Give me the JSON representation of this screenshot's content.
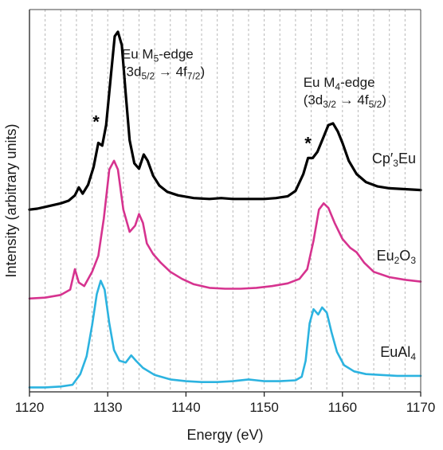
{
  "chart_data": {
    "type": "line",
    "title": "",
    "xlabel": "Energy (eV)",
    "ylabel": "Intensity (arbitrary units)",
    "xlim": [
      1120,
      1170
    ],
    "xticks": [
      1120,
      1130,
      1140,
      1150,
      1160,
      1170
    ],
    "xtick_labels": [
      "1120",
      "1130",
      "1140",
      "1150",
      "1160",
      "1170"
    ],
    "grid": "vertical dashed lines every 2 eV",
    "grid_x": [
      1122,
      1124,
      1126,
      1128,
      1130,
      1132,
      1134,
      1136,
      1138,
      1140,
      1142,
      1144,
      1146,
      1148,
      1150,
      1152,
      1154,
      1156,
      1158,
      1160,
      1162,
      1164,
      1166,
      1168
    ],
    "y_axis_ticks": "none",
    "series": [
      {
        "color": "#000000",
        "label_parts": [
          "Cp′",
          "3",
          "Eu"
        ],
        "offset": 2.0,
        "points": [
          [
            1120,
            0.0
          ],
          [
            1121,
            0.01
          ],
          [
            1122,
            0.03
          ],
          [
            1123,
            0.05
          ],
          [
            1124,
            0.07
          ],
          [
            1125,
            0.1
          ],
          [
            1125.8,
            0.16
          ],
          [
            1126.3,
            0.25
          ],
          [
            1126.8,
            0.18
          ],
          [
            1127.5,
            0.28
          ],
          [
            1128.2,
            0.48
          ],
          [
            1128.8,
            0.75
          ],
          [
            1129.3,
            0.72
          ],
          [
            1129.8,
            0.95
          ],
          [
            1130.4,
            1.5
          ],
          [
            1130.9,
            1.95
          ],
          [
            1131.3,
            2.0
          ],
          [
            1131.8,
            1.85
          ],
          [
            1132.3,
            1.3
          ],
          [
            1132.8,
            0.78
          ],
          [
            1133.4,
            0.52
          ],
          [
            1134.0,
            0.46
          ],
          [
            1134.6,
            0.62
          ],
          [
            1135.1,
            0.55
          ],
          [
            1135.8,
            0.38
          ],
          [
            1136.6,
            0.27
          ],
          [
            1137.6,
            0.2
          ],
          [
            1139,
            0.16
          ],
          [
            1141,
            0.13
          ],
          [
            1143,
            0.12
          ],
          [
            1144.5,
            0.13
          ],
          [
            1146,
            0.12
          ],
          [
            1148,
            0.12
          ],
          [
            1150,
            0.12
          ],
          [
            1151.5,
            0.13
          ],
          [
            1153,
            0.15
          ],
          [
            1154,
            0.21
          ],
          [
            1155,
            0.4
          ],
          [
            1155.6,
            0.58
          ],
          [
            1156.2,
            0.58
          ],
          [
            1156.8,
            0.65
          ],
          [
            1157.5,
            0.8
          ],
          [
            1158.2,
            0.95
          ],
          [
            1158.8,
            0.97
          ],
          [
            1159.4,
            0.88
          ],
          [
            1160,
            0.75
          ],
          [
            1160.8,
            0.55
          ],
          [
            1161.8,
            0.4
          ],
          [
            1163,
            0.31
          ],
          [
            1164.5,
            0.26
          ],
          [
            1166,
            0.24
          ],
          [
            1168,
            0.23
          ],
          [
            1170,
            0.22
          ]
        ]
      },
      {
        "color": "#d6338f",
        "label_parts": [
          "Eu",
          "2",
          "O",
          "3"
        ],
        "offset": 1.0,
        "points": [
          [
            1120,
            0.0
          ],
          [
            1122,
            0.01
          ],
          [
            1124,
            0.04
          ],
          [
            1125.2,
            0.1
          ],
          [
            1125.8,
            0.33
          ],
          [
            1126.3,
            0.18
          ],
          [
            1127,
            0.14
          ],
          [
            1128,
            0.3
          ],
          [
            1128.8,
            0.48
          ],
          [
            1129.5,
            0.9
          ],
          [
            1130.2,
            1.45
          ],
          [
            1130.8,
            1.55
          ],
          [
            1131.3,
            1.45
          ],
          [
            1132,
            1.0
          ],
          [
            1132.8,
            0.75
          ],
          [
            1133.5,
            0.82
          ],
          [
            1134,
            0.95
          ],
          [
            1134.5,
            0.85
          ],
          [
            1135,
            0.62
          ],
          [
            1135.8,
            0.5
          ],
          [
            1136.8,
            0.4
          ],
          [
            1138,
            0.3
          ],
          [
            1139.5,
            0.22
          ],
          [
            1141,
            0.16
          ],
          [
            1143,
            0.12
          ],
          [
            1145,
            0.11
          ],
          [
            1147,
            0.11
          ],
          [
            1149,
            0.12
          ],
          [
            1151,
            0.14
          ],
          [
            1153,
            0.17
          ],
          [
            1154.5,
            0.22
          ],
          [
            1155.5,
            0.33
          ],
          [
            1156.3,
            0.65
          ],
          [
            1157,
            1.0
          ],
          [
            1157.6,
            1.07
          ],
          [
            1158.2,
            1.02
          ],
          [
            1159,
            0.85
          ],
          [
            1160,
            0.67
          ],
          [
            1161,
            0.57
          ],
          [
            1161.8,
            0.52
          ],
          [
            1162.8,
            0.4
          ],
          [
            1164,
            0.3
          ],
          [
            1166,
            0.24
          ],
          [
            1168,
            0.21
          ],
          [
            1170,
            0.19
          ]
        ]
      },
      {
        "color": "#2cb3e0",
        "label_parts": [
          "EuAl",
          "4"
        ],
        "offset": 0.0,
        "points": [
          [
            1120,
            0.0
          ],
          [
            1122,
            0.0
          ],
          [
            1124,
            0.01
          ],
          [
            1125.5,
            0.03
          ],
          [
            1126.5,
            0.15
          ],
          [
            1127.3,
            0.35
          ],
          [
            1128,
            0.7
          ],
          [
            1128.6,
            1.05
          ],
          [
            1129.1,
            1.2
          ],
          [
            1129.6,
            1.1
          ],
          [
            1130.2,
            0.72
          ],
          [
            1130.8,
            0.42
          ],
          [
            1131.5,
            0.3
          ],
          [
            1132.3,
            0.28
          ],
          [
            1133.0,
            0.36
          ],
          [
            1133.6,
            0.3
          ],
          [
            1134.5,
            0.22
          ],
          [
            1136,
            0.14
          ],
          [
            1138,
            0.09
          ],
          [
            1140,
            0.07
          ],
          [
            1142,
            0.06
          ],
          [
            1144,
            0.06
          ],
          [
            1146,
            0.07
          ],
          [
            1148,
            0.09
          ],
          [
            1149,
            0.08
          ],
          [
            1150,
            0.07
          ],
          [
            1152,
            0.07
          ],
          [
            1154,
            0.08
          ],
          [
            1154.8,
            0.12
          ],
          [
            1155.3,
            0.3
          ],
          [
            1155.8,
            0.72
          ],
          [
            1156.3,
            0.88
          ],
          [
            1156.9,
            0.82
          ],
          [
            1157.4,
            0.9
          ],
          [
            1158,
            0.84
          ],
          [
            1158.6,
            0.62
          ],
          [
            1159.3,
            0.4
          ],
          [
            1160.2,
            0.25
          ],
          [
            1161.5,
            0.18
          ],
          [
            1163,
            0.15
          ],
          [
            1165,
            0.14
          ],
          [
            1167,
            0.13
          ],
          [
            1170,
            0.13
          ]
        ]
      }
    ],
    "annotations": [
      {
        "kind": "edge",
        "x": 1131.8,
        "y": 3.7,
        "line1": "Eu M",
        "line1_sub": "5",
        "line1_suffix": "-edge",
        "line2_pre": "(3d",
        "line2_sub1": "5/2",
        "arrow": " → 4f",
        "line2_sub2": "7/2",
        "line2_post": ")"
      },
      {
        "kind": "edge",
        "x": 1155.0,
        "y": 3.38,
        "line1": "Eu M",
        "line1_sub": "4",
        "line1_suffix": "-edge",
        "line2_pre": "(3d",
        "line2_sub1": "3/2",
        "arrow": " → 4f",
        "line2_sub2": "5/2",
        "line2_post": ")"
      },
      {
        "kind": "star",
        "text": "*",
        "x": 1128.5,
        "y": 2.92
      },
      {
        "kind": "star",
        "text": "*",
        "x": 1155.6,
        "y": 2.68
      }
    ]
  }
}
